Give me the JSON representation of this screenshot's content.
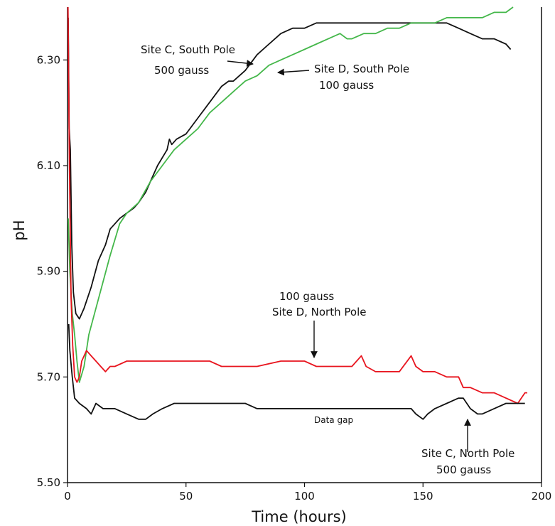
{
  "chart_data": {
    "type": "line",
    "title": "",
    "xlabel": "Time (hours)",
    "ylabel": "pH",
    "xlim": [
      0,
      200
    ],
    "ylim": [
      5.5,
      6.4
    ],
    "xticks": [
      "0",
      "50",
      "100",
      "150",
      "200"
    ],
    "yticks": [
      "5.50",
      "5.70",
      "5.90",
      "6.10",
      "6.30"
    ],
    "grid": false,
    "legend": "none",
    "series": [
      {
        "color": "#111111",
        "x": [
          0.3,
          0.7,
          1.2,
          1.8,
          2.5,
          3.5,
          5,
          7,
          10,
          13,
          16,
          18,
          20,
          22,
          25,
          28,
          30,
          33,
          35,
          38,
          42,
          43,
          44,
          46,
          50,
          55,
          60,
          65,
          68,
          70,
          75,
          80,
          85,
          90,
          95,
          100,
          105,
          110,
          115,
          120,
          125,
          130,
          140,
          145,
          150,
          155,
          160,
          165,
          170,
          175,
          180,
          185,
          187
        ],
        "y": [
          6.38,
          6.17,
          6.13,
          5.95,
          5.86,
          5.82,
          5.81,
          5.83,
          5.87,
          5.92,
          5.95,
          5.98,
          5.99,
          6.0,
          6.01,
          6.02,
          6.03,
          6.05,
          6.07,
          6.1,
          6.13,
          6.15,
          6.14,
          6.15,
          6.16,
          6.19,
          6.22,
          6.25,
          6.26,
          6.26,
          6.28,
          6.31,
          6.33,
          6.35,
          6.36,
          6.36,
          6.37,
          6.37,
          6.37,
          6.37,
          6.37,
          6.37,
          6.37,
          6.37,
          6.37,
          6.37,
          6.37,
          6.36,
          6.35,
          6.34,
          6.34,
          6.33,
          6.32
        ]
      },
      {
        "color": "#44b74a",
        "x": [
          0.3,
          1,
          2,
          3,
          4,
          5,
          7,
          9,
          12,
          15,
          18,
          20,
          22,
          25,
          30,
          35,
          40,
          45,
          50,
          55,
          60,
          65,
          70,
          75,
          80,
          85,
          90,
          95,
          100,
          105,
          110,
          115,
          118,
          120,
          125,
          130,
          135,
          140,
          145,
          150,
          155,
          160,
          165,
          170,
          175,
          180,
          185,
          188
        ],
        "y": [
          6.0,
          5.9,
          5.82,
          5.78,
          5.73,
          5.69,
          5.72,
          5.78,
          5.83,
          5.88,
          5.93,
          5.96,
          5.99,
          6.01,
          6.03,
          6.07,
          6.1,
          6.13,
          6.15,
          6.17,
          6.2,
          6.22,
          6.24,
          6.26,
          6.27,
          6.29,
          6.3,
          6.31,
          6.32,
          6.33,
          6.34,
          6.35,
          6.34,
          6.34,
          6.35,
          6.35,
          6.36,
          6.36,
          6.37,
          6.37,
          6.37,
          6.38,
          6.38,
          6.38,
          6.38,
          6.39,
          6.39,
          6.4
        ]
      },
      {
        "color": "#e8141e",
        "x": [
          0.2,
          0.8,
          1.5,
          2.2,
          3,
          4,
          5,
          6,
          8,
          10,
          12,
          14,
          16,
          18,
          20,
          25,
          30,
          40,
          50,
          55,
          60,
          65,
          70,
          75,
          80,
          90,
          100,
          105,
          110,
          115,
          120,
          124,
          126,
          130,
          140,
          145,
          147,
          150,
          155,
          160,
          165,
          167,
          170,
          175,
          180,
          185,
          190,
          193,
          194
        ],
        "y": [
          6.4,
          6.1,
          5.85,
          5.76,
          5.7,
          5.69,
          5.7,
          5.73,
          5.75,
          5.74,
          5.73,
          5.72,
          5.71,
          5.72,
          5.72,
          5.73,
          5.73,
          5.73,
          5.73,
          5.73,
          5.73,
          5.72,
          5.72,
          5.72,
          5.72,
          5.73,
          5.73,
          5.72,
          5.72,
          5.72,
          5.72,
          5.74,
          5.72,
          5.71,
          5.71,
          5.74,
          5.72,
          5.71,
          5.71,
          5.7,
          5.7,
          5.68,
          5.68,
          5.67,
          5.67,
          5.66,
          5.65,
          5.67,
          5.67
        ]
      },
      {
        "color": "#111111",
        "x": [
          0.5,
          1,
          2,
          3,
          5,
          8,
          10,
          12,
          15,
          20,
          25,
          30,
          33,
          36,
          40,
          45,
          50,
          55,
          58,
          60,
          65,
          70,
          75,
          80,
          85,
          87,
          100,
          120,
          140,
          145,
          147,
          150,
          152,
          155,
          160,
          165,
          167,
          170,
          173,
          175,
          180,
          185,
          190,
          193
        ],
        "y": [
          5.8,
          5.75,
          5.7,
          5.66,
          5.65,
          5.64,
          5.63,
          5.65,
          5.64,
          5.64,
          5.63,
          5.62,
          5.62,
          5.63,
          5.64,
          5.65,
          5.65,
          5.65,
          5.65,
          5.65,
          5.65,
          5.65,
          5.65,
          5.64,
          5.64,
          5.64,
          5.64,
          5.64,
          5.64,
          5.64,
          5.63,
          5.62,
          5.63,
          5.64,
          5.65,
          5.66,
          5.66,
          5.64,
          5.63,
          5.63,
          5.64,
          5.65,
          5.65,
          5.65
        ]
      }
    ],
    "annotations": [
      {
        "lines": [
          "Site C, South Pole",
          "500 gauss"
        ]
      },
      {
        "lines": [
          "Site D, South Pole",
          "100 gauss"
        ]
      },
      {
        "lines": [
          "100 gauss",
          "Site D, North Pole"
        ]
      },
      {
        "lines": [
          "Data gap"
        ]
      },
      {
        "lines": [
          "Site C, North Pole",
          "500 gauss"
        ]
      }
    ]
  }
}
